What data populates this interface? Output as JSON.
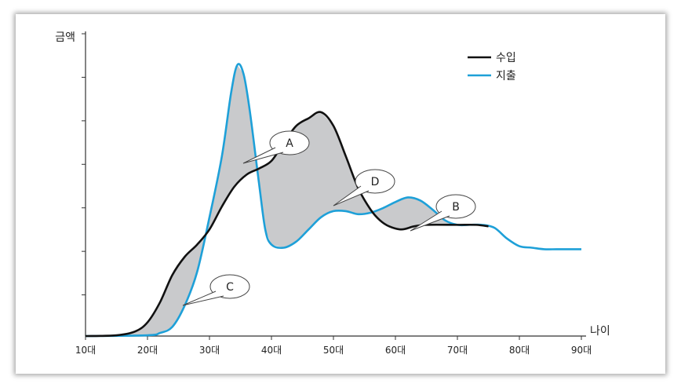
{
  "chart_data": {
    "type": "line",
    "ylabel": "금액",
    "xlabel": "나이",
    "x_categories": [
      "10대",
      "20대",
      "30대",
      "40대",
      "50대",
      "60대",
      "70대",
      "80대",
      "90대"
    ],
    "y_ticks": 7,
    "grid": false,
    "legend_position": "top-right",
    "series": [
      {
        "name": "수입",
        "color": "#111111",
        "points": [
          [
            10,
            0
          ],
          [
            15,
            0.5
          ],
          [
            18,
            3
          ],
          [
            20,
            9
          ],
          [
            22,
            22
          ],
          [
            24,
            40
          ],
          [
            26,
            52
          ],
          [
            28,
            60
          ],
          [
            30,
            70
          ],
          [
            32,
            85
          ],
          [
            34,
            98
          ],
          [
            36,
            106
          ],
          [
            38,
            110
          ],
          [
            40,
            115
          ],
          [
            42,
            127
          ],
          [
            44,
            138
          ],
          [
            46,
            143
          ],
          [
            48,
            147
          ],
          [
            50,
            138
          ],
          [
            52,
            118
          ],
          [
            54,
            97
          ],
          [
            56,
            83
          ],
          [
            57.5,
            76
          ],
          [
            59,
            72
          ],
          [
            61,
            70
          ],
          [
            63,
            72
          ],
          [
            65,
            73
          ],
          [
            70,
            73
          ],
          [
            73,
            73
          ],
          [
            75,
            72
          ]
        ]
      },
      {
        "name": "지출",
        "color": "#1ea0d8",
        "points": [
          [
            10,
            0
          ],
          [
            20,
            0.5
          ],
          [
            22,
            2
          ],
          [
            24,
            6
          ],
          [
            26,
            20
          ],
          [
            28,
            42
          ],
          [
            30,
            78
          ],
          [
            32,
            118
          ],
          [
            33.5,
            160
          ],
          [
            34.5,
            178
          ],
          [
            35.5,
            172
          ],
          [
            36.5,
            148
          ],
          [
            38,
            100
          ],
          [
            39,
            70
          ],
          [
            40,
            60
          ],
          [
            42,
            58
          ],
          [
            44,
            62
          ],
          [
            46,
            70
          ],
          [
            48,
            78
          ],
          [
            50,
            82
          ],
          [
            52,
            82
          ],
          [
            54,
            80
          ],
          [
            56,
            81
          ],
          [
            58,
            84
          ],
          [
            60,
            88
          ],
          [
            62,
            91
          ],
          [
            64,
            89
          ],
          [
            66,
            83
          ],
          [
            68,
            76
          ],
          [
            70,
            73
          ],
          [
            72,
            73
          ],
          [
            74,
            73
          ],
          [
            76,
            71
          ],
          [
            78,
            64
          ],
          [
            80,
            59
          ],
          [
            82,
            58
          ],
          [
            84,
            57
          ],
          [
            86,
            57
          ],
          [
            88,
            57
          ],
          [
            90,
            57
          ]
        ]
      }
    ],
    "shaded_regions": [
      {
        "label": "A"
      },
      {
        "label": "B"
      },
      {
        "label": "C"
      },
      {
        "label": "D"
      }
    ]
  }
}
